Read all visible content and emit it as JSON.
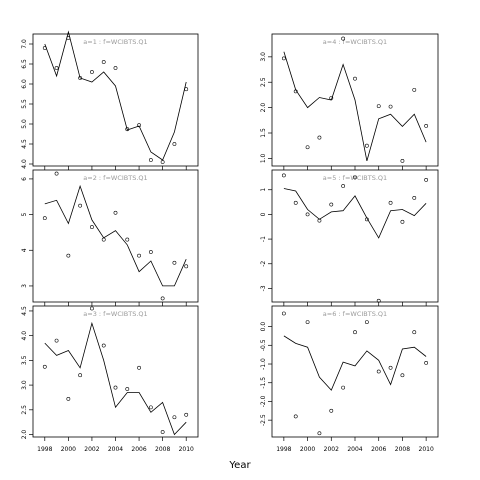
{
  "figure": {
    "xlabel": "Year"
  },
  "chart_data": [
    {
      "type": "line",
      "title": "a=1 : f=WCIBTS.Q1",
      "x_ticks": [
        1998,
        2000,
        2002,
        2004,
        2006,
        2008,
        2010
      ],
      "xlim": [
        1997,
        2011
      ],
      "ylim": [
        3.95,
        7.25
      ],
      "y_ticks": [
        4.0,
        4.5,
        5.0,
        5.5,
        6.0,
        6.5,
        7.0
      ],
      "y_tick_labels": [
        "4.0",
        "4.5",
        "5.0",
        "5.5",
        "6.0",
        "6.5",
        "7.0"
      ],
      "series": [
        {
          "kind": "fitted",
          "x": [
            1998,
            1999,
            2000,
            2001,
            2002,
            2003,
            2004,
            2005,
            2006,
            2007,
            2008,
            2009,
            2010
          ],
          "y": [
            7.0,
            6.2,
            7.3,
            6.15,
            6.05,
            6.3,
            5.95,
            4.85,
            4.95,
            4.3,
            4.1,
            4.8,
            6.05
          ]
        },
        {
          "kind": "observed",
          "x": [
            1998,
            1999,
            2000,
            2001,
            2002,
            2003,
            2004,
            2005,
            2006,
            2007,
            2008,
            2009,
            2010
          ],
          "y": [
            6.9,
            6.4,
            7.15,
            6.15,
            6.3,
            6.55,
            6.4,
            4.87,
            4.97,
            4.1,
            4.05,
            4.5,
            5.87
          ]
        }
      ]
    },
    {
      "type": "line",
      "title": "a=4 : f=WCIBTS.Q1",
      "x_ticks": [
        1998,
        2000,
        2002,
        2004,
        2006,
        2008,
        2010
      ],
      "xlim": [
        1997,
        2011
      ],
      "ylim": [
        0.85,
        3.45
      ],
      "y_ticks": [
        1.0,
        1.5,
        2.0,
        2.5,
        3.0
      ],
      "y_tick_labels": [
        "1.0",
        "1.5",
        "2.0",
        "2.5",
        "3.0"
      ],
      "series": [
        {
          "kind": "fitted",
          "x": [
            1998,
            1999,
            2000,
            2001,
            2002,
            2003,
            2004,
            2005,
            2006,
            2007,
            2008,
            2009,
            2010
          ],
          "y": [
            3.1,
            2.35,
            2.0,
            2.2,
            2.15,
            2.85,
            2.15,
            0.95,
            1.78,
            1.87,
            1.63,
            1.87,
            1.32
          ]
        },
        {
          "kind": "observed",
          "x": [
            1998,
            1999,
            2000,
            2001,
            2002,
            2003,
            2004,
            2005,
            2006,
            2007,
            2008,
            2009,
            2010
          ],
          "y": [
            2.97,
            2.32,
            1.22,
            1.41,
            2.19,
            3.36,
            2.57,
            1.25,
            2.03,
            2.02,
            0.95,
            2.35,
            1.64
          ]
        }
      ]
    },
    {
      "type": "line",
      "title": "a=2 : f=WCIBTS.Q1",
      "x_ticks": [
        1998,
        2000,
        2002,
        2004,
        2006,
        2008,
        2010
      ],
      "xlim": [
        1997,
        2011
      ],
      "ylim": [
        2.55,
        6.25
      ],
      "y_ticks": [
        3,
        4,
        5,
        6
      ],
      "y_tick_labels": [
        "3",
        "4",
        "5",
        "6"
      ],
      "series": [
        {
          "kind": "fitted",
          "x": [
            1998,
            1999,
            2000,
            2001,
            2002,
            2003,
            2004,
            2005,
            2006,
            2007,
            2008,
            2009,
            2010
          ],
          "y": [
            5.3,
            5.4,
            4.75,
            5.8,
            4.85,
            4.35,
            4.55,
            4.15,
            3.4,
            3.7,
            3.0,
            3.0,
            3.75
          ]
        },
        {
          "kind": "observed",
          "x": [
            1998,
            1999,
            2000,
            2001,
            2002,
            2003,
            2004,
            2005,
            2006,
            2007,
            2008,
            2009,
            2010
          ],
          "y": [
            4.9,
            6.15,
            3.85,
            5.25,
            4.65,
            4.3,
            5.05,
            4.3,
            3.85,
            3.95,
            2.65,
            3.65,
            3.55
          ]
        }
      ]
    },
    {
      "type": "line",
      "title": "a=5 : f=WCIBTS.Q1",
      "x_ticks": [
        1998,
        2000,
        2002,
        2004,
        2006,
        2008,
        2010
      ],
      "xlim": [
        1997,
        2011
      ],
      "ylim": [
        -3.55,
        1.8
      ],
      "y_ticks": [
        -3,
        -2,
        -1,
        0,
        1
      ],
      "y_tick_labels": [
        "-3",
        "-2",
        "-1",
        "0",
        "1"
      ],
      "series": [
        {
          "kind": "fitted",
          "x": [
            1998,
            1999,
            2000,
            2001,
            2002,
            2003,
            2004,
            2005,
            2006,
            2007,
            2008,
            2009,
            2010
          ],
          "y": [
            1.05,
            0.95,
            0.2,
            -0.2,
            0.1,
            0.15,
            0.75,
            -0.15,
            -0.95,
            0.15,
            0.2,
            -0.05,
            0.45
          ]
        },
        {
          "kind": "observed",
          "x": [
            1998,
            1999,
            2000,
            2001,
            2002,
            2003,
            2004,
            2005,
            2006,
            2007,
            2008,
            2009,
            2010
          ],
          "y": [
            1.58,
            0.47,
            0.0,
            -0.25,
            0.4,
            1.15,
            1.5,
            -0.2,
            -3.5,
            0.47,
            -0.3,
            0.67,
            1.4
          ]
        }
      ]
    },
    {
      "type": "line",
      "title": "a=3 : f=WCIBTS.Q1",
      "x_ticks": [
        1998,
        2000,
        2002,
        2004,
        2006,
        2008,
        2010
      ],
      "xlim": [
        1997,
        2011
      ],
      "ylim": [
        1.95,
        4.6
      ],
      "y_ticks": [
        2.0,
        2.5,
        3.0,
        3.5,
        4.0,
        4.5
      ],
      "y_tick_labels": [
        "2.0",
        "2.5",
        "3.0",
        "3.5",
        "4.0",
        "4.5"
      ],
      "series": [
        {
          "kind": "fitted",
          "x": [
            1998,
            1999,
            2000,
            2001,
            2002,
            2003,
            2004,
            2005,
            2006,
            2007,
            2008,
            2009,
            2010
          ],
          "y": [
            3.85,
            3.6,
            3.7,
            3.35,
            4.25,
            3.5,
            2.55,
            2.85,
            2.85,
            2.45,
            2.65,
            2.0,
            2.25
          ]
        },
        {
          "kind": "observed",
          "x": [
            1998,
            1999,
            2000,
            2001,
            2002,
            2003,
            2004,
            2005,
            2006,
            2007,
            2008,
            2009,
            2010
          ],
          "y": [
            3.37,
            3.9,
            2.72,
            3.2,
            4.55,
            3.8,
            2.95,
            2.92,
            3.35,
            2.55,
            2.05,
            2.35,
            2.4
          ]
        }
      ]
    },
    {
      "type": "line",
      "title": "a=6 : f=WCIBTS.Q1",
      "x_ticks": [
        1998,
        2000,
        2002,
        2004,
        2006,
        2008,
        2010
      ],
      "xlim": [
        1997,
        2011
      ],
      "ylim": [
        -2.95,
        0.55
      ],
      "y_ticks": [
        -2.5,
        -2.0,
        -1.5,
        -1.0,
        -0.5,
        0.0
      ],
      "y_tick_labels": [
        "-2.5",
        "-2.0",
        "-1.5",
        "-1.0",
        "-0.5",
        "0.0"
      ],
      "series": [
        {
          "kind": "fitted",
          "x": [
            1998,
            1999,
            2000,
            2001,
            2002,
            2003,
            2004,
            2005,
            2006,
            2007,
            2008,
            2009,
            2010
          ],
          "y": [
            -0.25,
            -0.45,
            -0.55,
            -1.35,
            -1.7,
            -0.95,
            -1.05,
            -0.65,
            -0.9,
            -1.55,
            -0.6,
            -0.55,
            -0.8
          ]
        },
        {
          "kind": "observed",
          "x": [
            1998,
            1999,
            2000,
            2001,
            2002,
            2003,
            2004,
            2005,
            2006,
            2007,
            2008,
            2009,
            2010
          ],
          "y": [
            0.35,
            -2.4,
            0.12,
            -2.85,
            -2.25,
            -1.63,
            -0.15,
            0.12,
            -1.2,
            -1.1,
            -1.3,
            -0.15,
            -0.97
          ]
        }
      ]
    }
  ]
}
